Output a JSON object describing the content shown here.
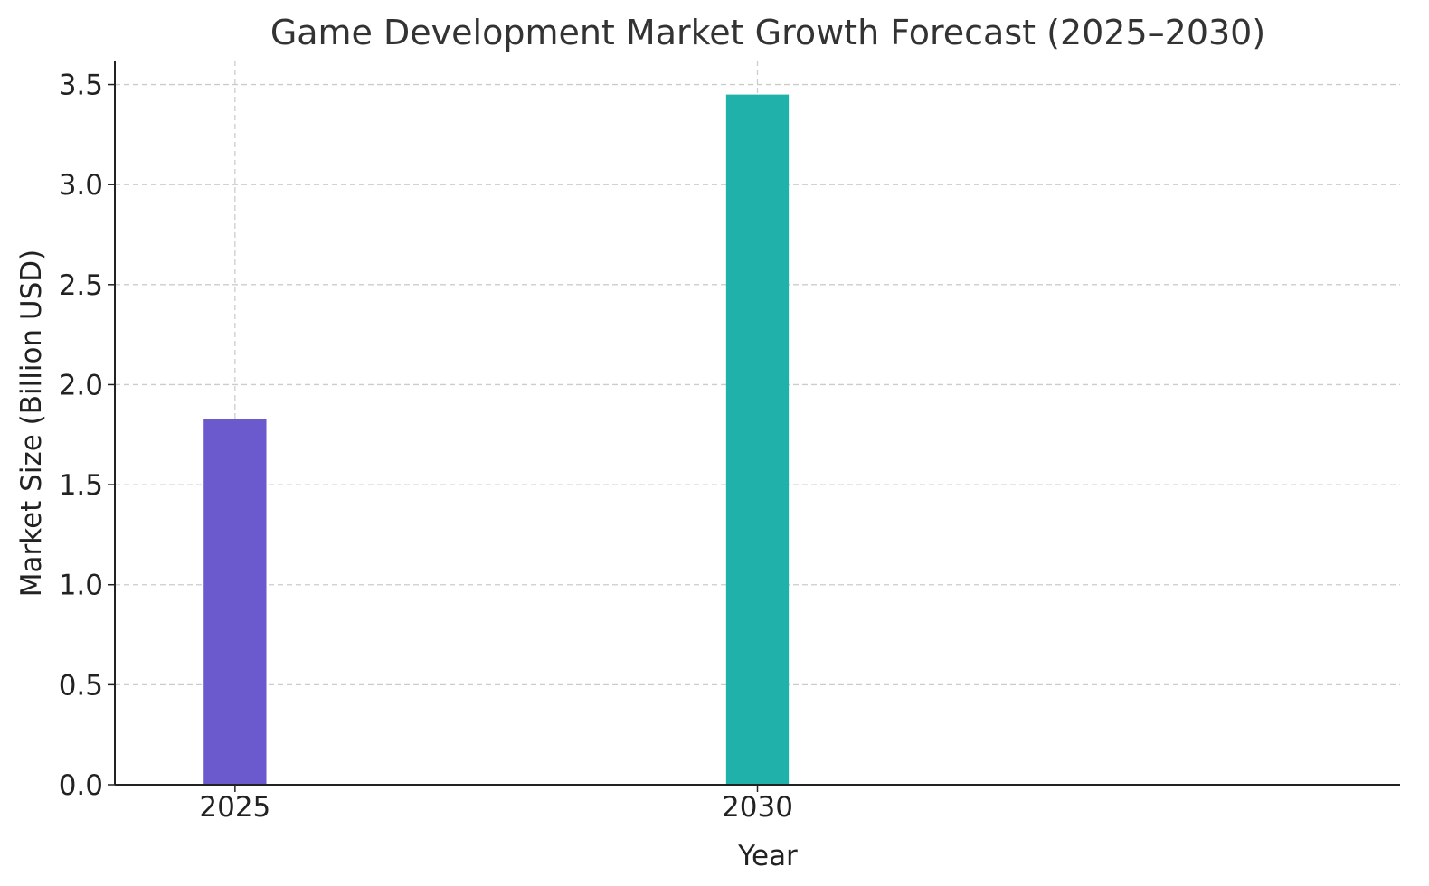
{
  "chart_data": {
    "type": "bar",
    "title": "Game Development Market Growth Forecast (2025–2030)",
    "xlabel": "Year",
    "ylabel": "Market Size (Billion USD)",
    "x": [
      2025,
      2030
    ],
    "x_ticks": [
      2025,
      2030
    ],
    "xlim": [
      2023.85,
      2036.15
    ],
    "ylim": [
      0,
      3.62
    ],
    "y_ticks": [
      0.0,
      0.5,
      1.0,
      1.5,
      2.0,
      2.5,
      3.0,
      3.5
    ],
    "bar_width_years": 0.6,
    "values": [
      1.83,
      3.45
    ],
    "bar_colors": [
      "#6a5acd",
      "#20b2aa"
    ],
    "grid": true,
    "legend": "none"
  }
}
